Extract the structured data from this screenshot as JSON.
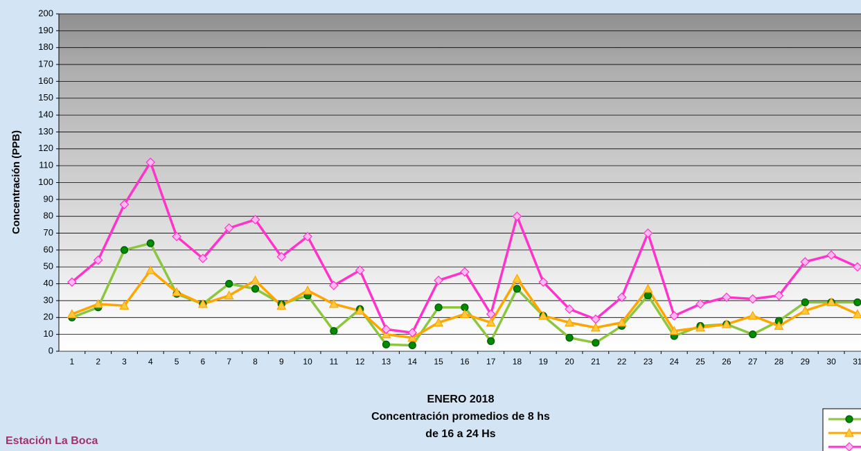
{
  "chart_data": {
    "type": "line",
    "ylabel": "Concentración  (PPB)",
    "title_lines": [
      "ENERO 2018",
      "Concentración promedios de 8 hs",
      "de 16 a 24 Hs"
    ],
    "annotation": "Estación La Boca",
    "categories": [
      "1",
      "2",
      "3",
      "4",
      "5",
      "6",
      "7",
      "8",
      "9",
      "10",
      "11",
      "12",
      "13",
      "14",
      "15",
      "16",
      "17",
      "18",
      "19",
      "20",
      "21",
      "22",
      "23",
      "24",
      "25",
      "26",
      "27",
      "28",
      "29",
      "30",
      "31"
    ],
    "series": [
      {
        "color": "#8cc63f",
        "marker": "circle",
        "marker_color": "#008a00",
        "values": [
          20,
          26,
          60,
          64,
          34,
          28,
          40,
          37,
          28,
          33,
          12,
          25,
          4,
          3.5,
          26,
          26,
          6,
          37,
          21,
          8,
          5,
          15,
          33,
          9,
          15,
          16,
          10,
          18,
          29,
          29,
          29
        ]
      },
      {
        "color": "#ffa500",
        "marker": "triangle",
        "marker_color": "#ffc83d",
        "values": [
          22,
          28,
          27,
          48,
          35,
          28,
          33,
          42,
          27,
          36,
          28,
          24,
          10,
          8,
          17,
          22,
          17,
          43,
          21,
          17,
          14,
          17,
          37,
          12,
          14,
          16,
          21,
          15,
          24,
          29,
          22
        ]
      },
      {
        "color": "#ff33cc",
        "marker": "diamond",
        "marker_color": "#ffb8f2",
        "values": [
          41,
          54,
          87,
          112,
          68,
          55,
          73,
          78,
          56,
          68,
          39,
          48,
          13,
          11,
          42,
          47,
          22,
          80,
          41,
          25,
          19,
          32,
          70,
          21,
          28,
          32,
          31,
          33,
          53,
          57,
          50
        ]
      }
    ],
    "ylim": [
      0,
      200
    ],
    "yticks": [
      0,
      10,
      20,
      30,
      40,
      50,
      60,
      70,
      80,
      90,
      100,
      110,
      120,
      130,
      140,
      150,
      160,
      170,
      180,
      190,
      200
    ],
    "grid": true
  }
}
